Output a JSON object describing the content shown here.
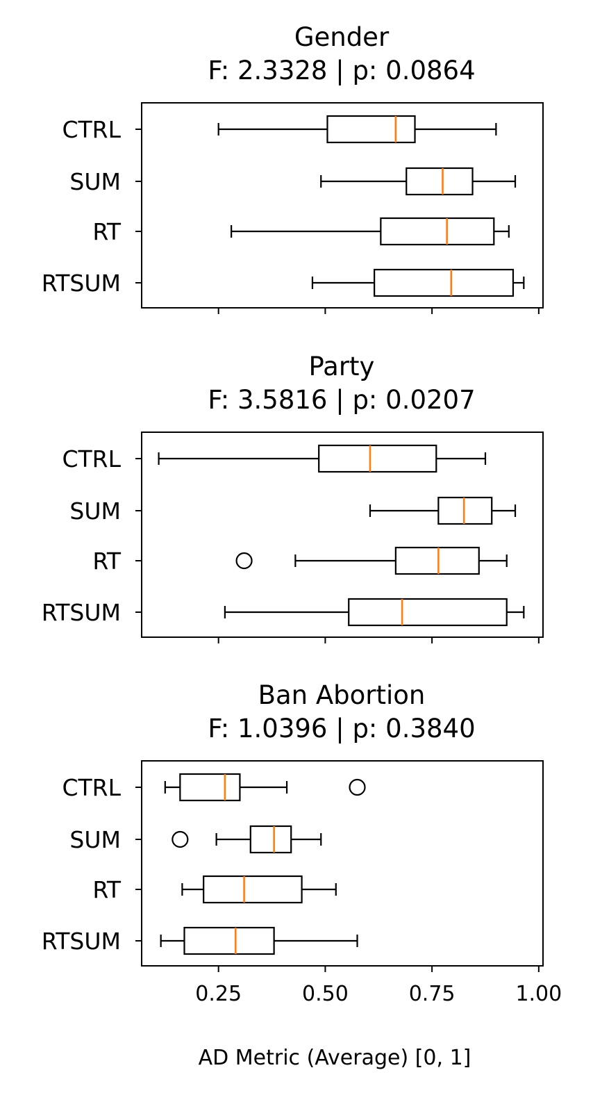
{
  "chart_data": {
    "type": "boxplot",
    "orientation": "horizontal",
    "xlabel": "AD Metric (Average) [0, 1]",
    "xlim": [
      0.07,
      1.01
    ],
    "xticks": [
      0.25,
      0.5,
      0.75,
      1.0
    ],
    "xtick_labels": [
      "0.25",
      "0.50",
      "0.75",
      "1.00"
    ],
    "shared_x": true,
    "colors": {
      "median": "#ff7f0e",
      "box": "#000000",
      "whisker": "#000000"
    },
    "panels": [
      {
        "title": "Gender",
        "subtitle": "F: 2.3328 | p: 0.0864",
        "categories": [
          "CTRL",
          "SUM",
          "RT",
          "RTSUM"
        ],
        "boxes": [
          {
            "label": "CTRL",
            "whislo": 0.25,
            "q1": 0.505,
            "med": 0.665,
            "q3": 0.71,
            "whishi": 0.9,
            "fliers": []
          },
          {
            "label": "SUM",
            "whislo": 0.49,
            "q1": 0.69,
            "med": 0.775,
            "q3": 0.845,
            "whishi": 0.945,
            "fliers": []
          },
          {
            "label": "RT",
            "whislo": 0.28,
            "q1": 0.63,
            "med": 0.785,
            "q3": 0.895,
            "whishi": 0.93,
            "fliers": []
          },
          {
            "label": "RTSUM",
            "whislo": 0.47,
            "q1": 0.615,
            "med": 0.795,
            "q3": 0.94,
            "whishi": 0.965,
            "fliers": []
          }
        ]
      },
      {
        "title": "Party",
        "subtitle": "F: 3.5816 | p: 0.0207",
        "categories": [
          "CTRL",
          "SUM",
          "RT",
          "RTSUM"
        ],
        "boxes": [
          {
            "label": "CTRL",
            "whislo": 0.11,
            "q1": 0.485,
            "med": 0.605,
            "q3": 0.76,
            "whishi": 0.875,
            "fliers": []
          },
          {
            "label": "SUM",
            "whislo": 0.605,
            "q1": 0.765,
            "med": 0.825,
            "q3": 0.89,
            "whishi": 0.945,
            "fliers": []
          },
          {
            "label": "RT",
            "whislo": 0.43,
            "q1": 0.665,
            "med": 0.765,
            "q3": 0.86,
            "whishi": 0.925,
            "fliers": [
              0.31
            ]
          },
          {
            "label": "RTSUM",
            "whislo": 0.265,
            "q1": 0.555,
            "med": 0.68,
            "q3": 0.925,
            "whishi": 0.965,
            "fliers": []
          }
        ]
      },
      {
        "title": "Ban Abortion",
        "subtitle": "F: 1.0396 | p: 0.3840",
        "categories": [
          "CTRL",
          "SUM",
          "RT",
          "RTSUM"
        ],
        "boxes": [
          {
            "label": "CTRL",
            "whislo": 0.125,
            "q1": 0.16,
            "med": 0.265,
            "q3": 0.3,
            "whishi": 0.41,
            "fliers": [
              0.575
            ]
          },
          {
            "label": "SUM",
            "whislo": 0.245,
            "q1": 0.325,
            "med": 0.38,
            "q3": 0.42,
            "whishi": 0.49,
            "fliers": [
              0.16
            ]
          },
          {
            "label": "RT",
            "whislo": 0.165,
            "q1": 0.215,
            "med": 0.31,
            "q3": 0.445,
            "whishi": 0.525,
            "fliers": []
          },
          {
            "label": "RTSUM",
            "whislo": 0.115,
            "q1": 0.17,
            "med": 0.29,
            "q3": 0.38,
            "whishi": 0.575,
            "fliers": []
          }
        ]
      }
    ]
  }
}
